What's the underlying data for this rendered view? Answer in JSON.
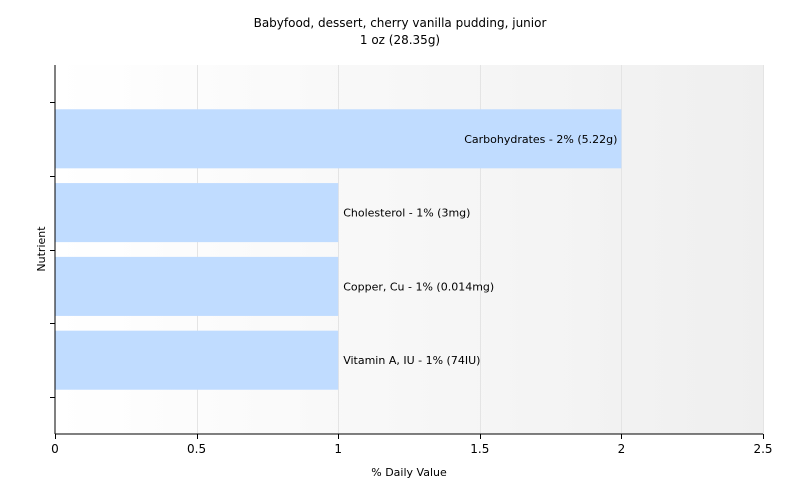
{
  "chart_data": {
    "type": "bar",
    "orientation": "horizontal",
    "title": "Babyfood, dessert, cherry vanilla pudding, junior",
    "subtitle": "1 oz (28.35g)",
    "xlabel": "% Daily Value",
    "ylabel": "Nutrient",
    "xlim": [
      0,
      2.5
    ],
    "xticks": [
      "0",
      "0.5",
      "1",
      "1.5",
      "2",
      "2.5"
    ],
    "grid": true,
    "legend": "none",
    "bar_color": "#c0dcff",
    "categories": [
      "Carbohydrates",
      "Cholesterol",
      "Copper, Cu",
      "Vitamin A, IU"
    ],
    "values": [
      2,
      1,
      1,
      1
    ],
    "labels": [
      "Carbohydrates - 2% (5.22g)",
      "Cholesterol - 1% (3mg)",
      "Copper, Cu - 1% (0.014mg)",
      "Vitamin A, IU - 1% (74IU)"
    ]
  }
}
